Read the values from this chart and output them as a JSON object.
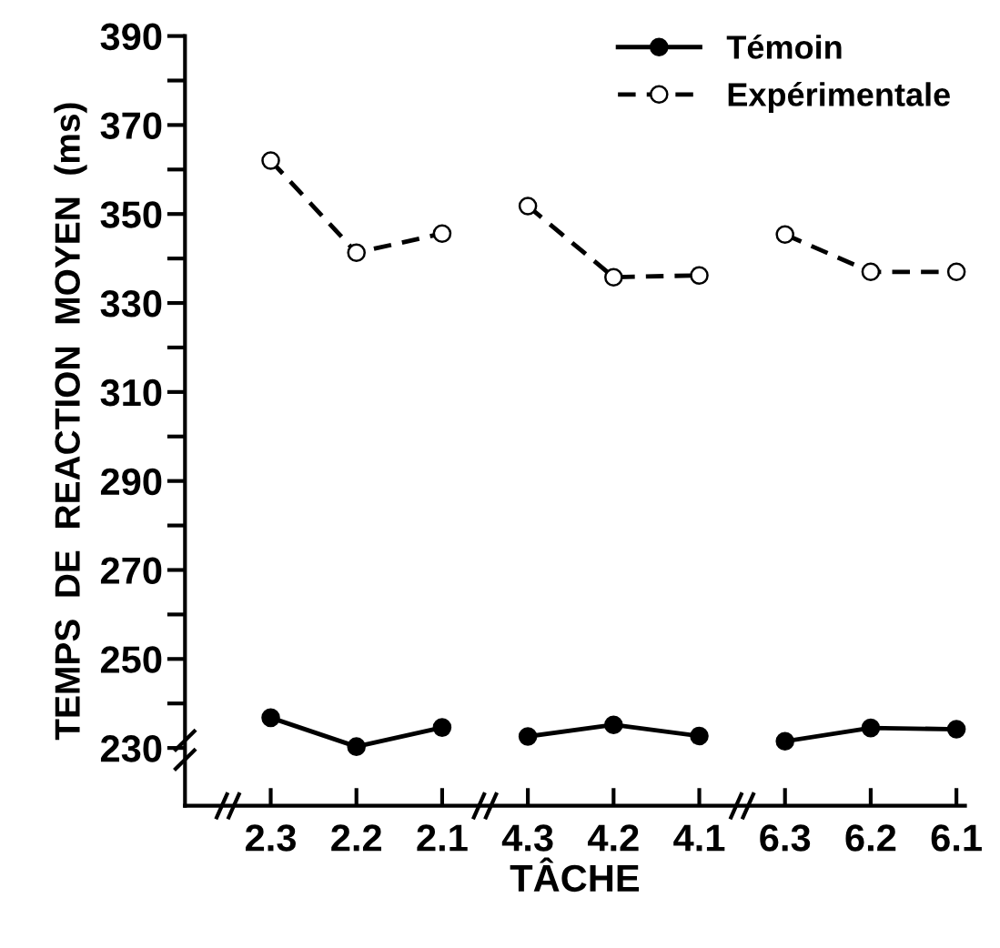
{
  "chart_data": {
    "type": "line",
    "xlabel": "TÂCHE",
    "ylabel": "TEMPS  DE  REACTION  MOYEN  (ms)",
    "categories": [
      "2.3",
      "2.2",
      "2.1",
      "4.3",
      "4.2",
      "4.1",
      "6.3",
      "6.2",
      "6.1"
    ],
    "series": [
      {
        "name": "Témoin",
        "color": "#000000",
        "line_style": "solid",
        "values": [
          236.8,
          230.3,
          234.6,
          null,
          null,
          null,
          null,
          null,
          null
        ]
      },
      {
        "color": "#000000",
        "line_style": "solid",
        "values": [
          null,
          null,
          null,
          232.6,
          235.2,
          232.7,
          null,
          null,
          null
        ]
      },
      {
        "color": "#000000",
        "line_style": "solid",
        "values": [
          null,
          null,
          null,
          null,
          null,
          null,
          231.5,
          234.5,
          234.2
        ]
      },
      {
        "name": "Expérimentale",
        "color": "#000000",
        "line_style": "dashed",
        "values": [
          362,
          341.3,
          345.6,
          null,
          null,
          null,
          null,
          null,
          null
        ]
      },
      {
        "color": "#000000",
        "line_style": "dashed",
        "values": [
          null,
          null,
          null,
          351.8,
          335.8,
          336.2,
          null,
          null,
          null
        ]
      },
      {
        "color": "#000000",
        "line_style": "dashed",
        "values": [
          null,
          null,
          null,
          null,
          null,
          null,
          345.4,
          337.0,
          337.0
        ]
      }
    ],
    "ylim": [
      217,
      390
    ],
    "yticks": [
      230,
      250,
      270,
      290,
      310,
      330,
      350,
      370,
      390
    ],
    "marker": "circle",
    "grid": false,
    "legend": "top right"
  }
}
